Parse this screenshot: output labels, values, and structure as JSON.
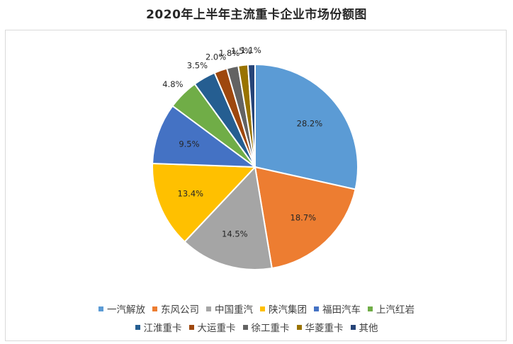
{
  "chart_data": {
    "type": "pie",
    "title": "2020年上半年主流重卡企业市场份额图",
    "slices": [
      {
        "name": "一汽解放",
        "value": 28.2,
        "label": "28.2%",
        "color": "#5b9bd5"
      },
      {
        "name": "东风公司",
        "value": 18.7,
        "label": "18.7%",
        "color": "#ed7d31"
      },
      {
        "name": "中国重汽",
        "value": 14.5,
        "label": "14.5%",
        "color": "#a5a5a5"
      },
      {
        "name": "陕汽集团",
        "value": 13.4,
        "label": "13.4%",
        "color": "#ffc000"
      },
      {
        "name": "福田汽车",
        "value": 9.5,
        "label": "9.5%",
        "color": "#4472c4"
      },
      {
        "name": "上汽红岩",
        "value": 4.8,
        "label": "4.8%",
        "color": "#70ad47"
      },
      {
        "name": "江淮重卡",
        "value": 3.5,
        "label": "3.5%",
        "color": "#255e91"
      },
      {
        "name": "大运重卡",
        "value": 2.0,
        "label": "2.0%",
        "color": "#9e480e"
      },
      {
        "name": "徐工重卡",
        "value": 1.8,
        "label": "1.8%",
        "color": "#636363"
      },
      {
        "name": "华菱重卡",
        "value": 1.5,
        "label": "1.5%",
        "color": "#997300"
      },
      {
        "name": "其他",
        "value": 1.1,
        "label": "1.1%",
        "color": "#264478"
      }
    ],
    "legend_position": "bottom"
  }
}
